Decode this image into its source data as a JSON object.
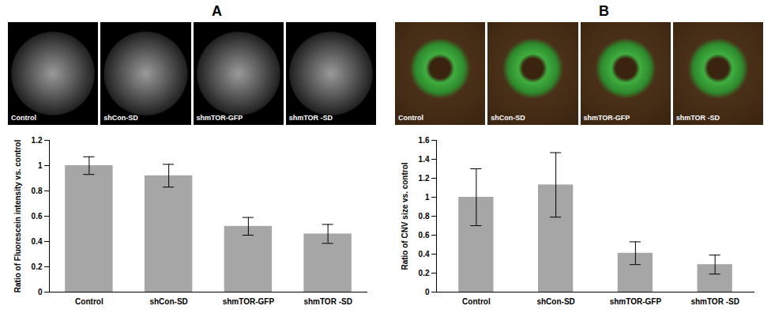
{
  "chart_data": [
    {
      "type": "bar",
      "panel": "A",
      "image_labels": [
        "Control",
        "shCon-SD",
        "shmTOR-GFP",
        "shmTOR -SD"
      ],
      "categories": [
        "Control",
        "shCon-SD",
        "shmTOR-GFP",
        "shmTOR -SD"
      ],
      "values": [
        1.0,
        0.92,
        0.52,
        0.46
      ],
      "errors": [
        0.07,
        0.09,
        0.07,
        0.075
      ],
      "color": "#a6a6a6",
      "y_label": "Ratio of Fluorescein intensity vs. control",
      "ylim": [
        0,
        1.2
      ],
      "yticks": [
        0,
        0.2,
        0.4,
        0.6,
        0.8,
        1,
        1.2
      ],
      "grid": false
    },
    {
      "type": "bar",
      "panel": "B",
      "image_labels": [
        "Control",
        "shCon-SD",
        "shmTOR-GFP",
        "shmTOR -SD"
      ],
      "categories": [
        "Control",
        "shCon-SD",
        "shmTOR-GFP",
        "shmTOR -SD"
      ],
      "values": [
        1.0,
        1.13,
        0.41,
        0.29
      ],
      "errors": [
        0.3,
        0.34,
        0.12,
        0.1
      ],
      "color": "#a6a6a6",
      "y_label": "Ratio of CNV size vs. control",
      "ylim": [
        0,
        1.6
      ],
      "yticks": [
        0,
        0.2,
        0.4,
        0.6,
        0.8,
        1,
        1.2,
        1.4,
        1.6
      ],
      "grid": false
    }
  ]
}
